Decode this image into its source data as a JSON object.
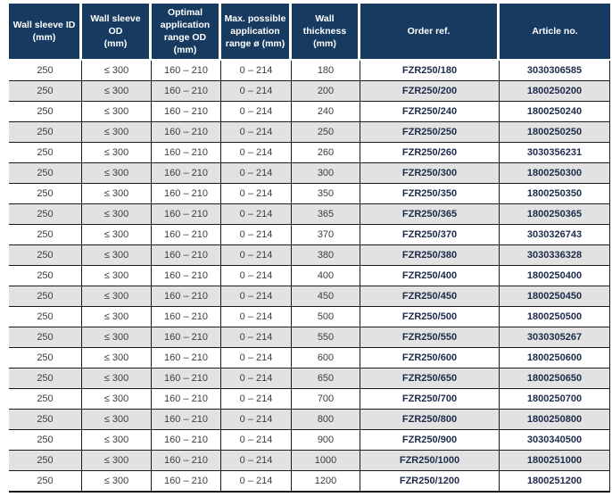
{
  "table": {
    "columns": [
      {
        "id": "wall-sleeve-id",
        "label": "Wall sleeve ID\n(mm)"
      },
      {
        "id": "wall-sleeve-od",
        "label": "Wall sleeve OD\n(mm)"
      },
      {
        "id": "optimal-application-range-od",
        "label": "Optimal\napplication\nrange OD\n(mm)"
      },
      {
        "id": "max-possible-application-range",
        "label": "Max. possible\napplication\nrange ø (mm)"
      },
      {
        "id": "wall-thickness",
        "label": "Wall thickness\n(mm)"
      },
      {
        "id": "order-ref",
        "label": "Order ref."
      },
      {
        "id": "article-no",
        "label": "Article no."
      }
    ],
    "rows": [
      [
        "250",
        "≤ 300",
        "160 – 210",
        "0 – 214",
        "180",
        "FZR250/180",
        "3030306585"
      ],
      [
        "250",
        "≤ 300",
        "160 – 210",
        "0 – 214",
        "200",
        "FZR250/200",
        "1800250200"
      ],
      [
        "250",
        "≤ 300",
        "160 – 210",
        "0 – 214",
        "240",
        "FZR250/240",
        "1800250240"
      ],
      [
        "250",
        "≤ 300",
        "160 – 210",
        "0 – 214",
        "250",
        "FZR250/250",
        "1800250250"
      ],
      [
        "250",
        "≤ 300",
        "160 – 210",
        "0 – 214",
        "260",
        "FZR250/260",
        "3030356231"
      ],
      [
        "250",
        "≤ 300",
        "160 – 210",
        "0 – 214",
        "300",
        "FZR250/300",
        "1800250300"
      ],
      [
        "250",
        "≤ 300",
        "160 – 210",
        "0 – 214",
        "350",
        "FZR250/350",
        "1800250350"
      ],
      [
        "250",
        "≤ 300",
        "160 – 210",
        "0 – 214",
        "365",
        "FZR250/365",
        "1800250365"
      ],
      [
        "250",
        "≤ 300",
        "160 – 210",
        "0 – 214",
        "370",
        "FZR250/370",
        "3030326743"
      ],
      [
        "250",
        "≤ 300",
        "160 – 210",
        "0 – 214",
        "380",
        "FZR250/380",
        "3030336328"
      ],
      [
        "250",
        "≤ 300",
        "160 – 210",
        "0 – 214",
        "400",
        "FZR250/400",
        "1800250400"
      ],
      [
        "250",
        "≤ 300",
        "160 – 210",
        "0 – 214",
        "450",
        "FZR250/450",
        "1800250450"
      ],
      [
        "250",
        "≤ 300",
        "160 – 210",
        "0 – 214",
        "500",
        "FZR250/500",
        "1800250500"
      ],
      [
        "250",
        "≤ 300",
        "160 – 210",
        "0 – 214",
        "550",
        "FZR250/550",
        "3030305267"
      ],
      [
        "250",
        "≤ 300",
        "160 – 210",
        "0 – 214",
        "600",
        "FZR250/600",
        "1800250600"
      ],
      [
        "250",
        "≤ 300",
        "160 – 210",
        "0 – 214",
        "650",
        "FZR250/650",
        "1800250650"
      ],
      [
        "250",
        "≤ 300",
        "160 – 210",
        "0 – 214",
        "700",
        "FZR250/700",
        "1800250700"
      ],
      [
        "250",
        "≤ 300",
        "160 – 210",
        "0 – 214",
        "800",
        "FZR250/800",
        "1800250800"
      ],
      [
        "250",
        "≤ 300",
        "160 – 210",
        "0 – 214",
        "900",
        "FZR250/900",
        "3030340500"
      ],
      [
        "250",
        "≤ 300",
        "160 – 210",
        "0 – 214",
        "1000",
        "FZR250/1000",
        "1800251000"
      ],
      [
        "250",
        "≤ 300",
        "160 – 210",
        "0 – 214",
        "1200",
        "FZR250/1200",
        "1800251200"
      ]
    ]
  },
  "colors": {
    "header_bg": "#173b60",
    "header_text": "#ffffff",
    "row_stripe": "#e2e2e2",
    "row_white": "#ffffff",
    "border": "#1a1a1a",
    "body_text": "#3d3d3d",
    "strong_text": "#1c2b4a"
  }
}
